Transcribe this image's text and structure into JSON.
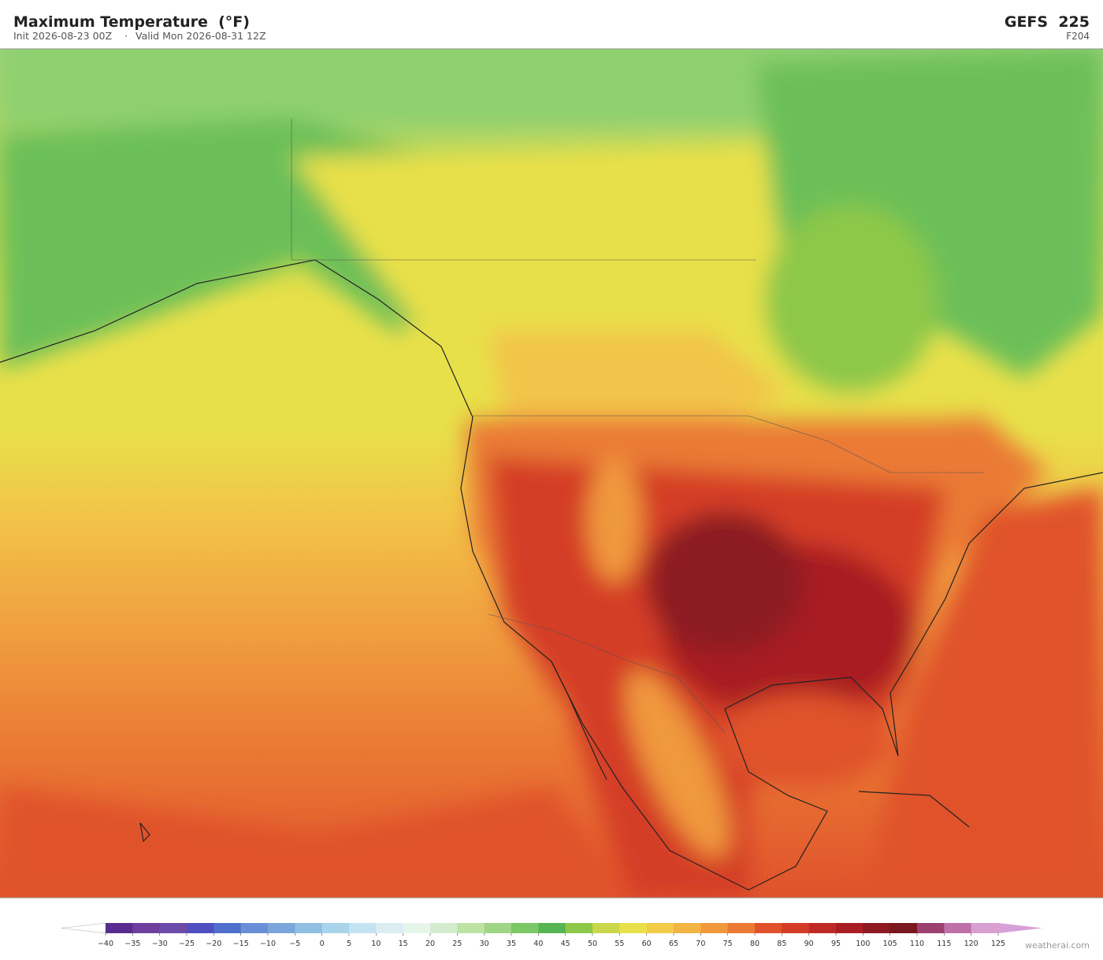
{
  "header": {
    "title": "Maximum Temperature  (°F)",
    "init": "Init 2026-08-23 00Z",
    "separator": "·",
    "valid": "Valid Mon 2026-08-31 12Z",
    "model": "GEFS  225",
    "forecast_hour": "F204"
  },
  "colorbar": {
    "levels": [
      {
        "value": -40,
        "label": "−40"
      },
      {
        "value": -35,
        "label": "−35"
      },
      {
        "value": -30,
        "label": "−30"
      },
      {
        "value": -25,
        "label": "−25"
      },
      {
        "value": -20,
        "label": "−20"
      },
      {
        "value": -15,
        "label": "−15"
      },
      {
        "value": -10,
        "label": "−10"
      },
      {
        "value": -5,
        "label": "−5"
      },
      0,
      5,
      10,
      15,
      20,
      25,
      30,
      35,
      40,
      45,
      50,
      55,
      60,
      65,
      70,
      75,
      80,
      85,
      90,
      95,
      100,
      105,
      110,
      115,
      120,
      125
    ],
    "colors": [
      "#5b2c8f",
      "#6f3fa0",
      "#6b4aa8",
      "#4f4fc0",
      "#4f6fcc",
      "#6a8fd6",
      "#7aa6dc",
      "#90bfe4",
      "#a8d4ec",
      "#c4e3f0",
      "#daeef2",
      "#e6f4ea",
      "#d4ecce",
      "#bde3a4",
      "#9fd686",
      "#7cc866",
      "#56b452",
      "#8dc84a",
      "#c8d84a",
      "#e8e04a",
      "#f2cc48",
      "#f2b442",
      "#f0983c",
      "#ea7a34",
      "#e0522c",
      "#d43c28",
      "#c02a24",
      "#a81e22",
      "#8c1a20",
      "#7a1820",
      "#9c4070",
      "#c070a8",
      "#d8a0d0"
    ],
    "under_color": "#ffffff",
    "over_color": "#d8a0d8"
  },
  "watermark": "weatherai.com"
}
